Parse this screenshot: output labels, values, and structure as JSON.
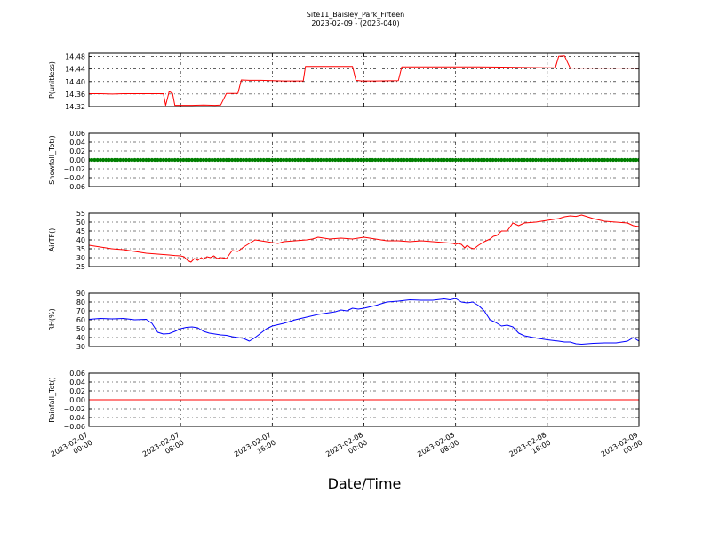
{
  "figure": {
    "title_line1": "Site11_Baisley_Park_Fifteen",
    "title_line2": "2023-02-09 - (2023-040)",
    "xlabel": "Date/Time",
    "x_ticks": [
      {
        "t": 0,
        "line1": "2023-02-07",
        "line2": "00:00"
      },
      {
        "t": 8,
        "line1": "2023-02-07",
        "line2": "08:00"
      },
      {
        "t": 16,
        "line1": "2023-02-07",
        "line2": "16:00"
      },
      {
        "t": 24,
        "line1": "2023-02-08",
        "line2": "00:00"
      },
      {
        "t": 32,
        "line1": "2023-02-08",
        "line2": "08:00"
      },
      {
        "t": 40,
        "line1": "2023-02-08",
        "line2": "16:00"
      },
      {
        "t": 48,
        "line1": "2023-02-09",
        "line2": "00:00"
      }
    ]
  },
  "chart_data": [
    {
      "type": "line",
      "ylabel": "P(unitless)",
      "ylim": [
        14.32,
        14.49
      ],
      "yticks": [
        "14.32",
        "14.36",
        "14.40",
        "14.44",
        "14.48"
      ],
      "grid": true,
      "color": "#ff0000",
      "series": [
        {
          "x": [
            0,
            1,
            2,
            3,
            4,
            5,
            6,
            6.5,
            6.7,
            7,
            7.3,
            7.5,
            8,
            9,
            10,
            11,
            11.5,
            12,
            13,
            13.3,
            14,
            15,
            16,
            17,
            18,
            18.7,
            18.9,
            20,
            22,
            23,
            23.3,
            23.8,
            25,
            27,
            27.3,
            28,
            30,
            32,
            34,
            36,
            38,
            40,
            40.7,
            41,
            41.5,
            42,
            43,
            44,
            45,
            46,
            47,
            48
          ],
          "y": [
            14.361,
            14.361,
            14.36,
            14.361,
            14.361,
            14.361,
            14.361,
            14.361,
            14.324,
            14.368,
            14.362,
            14.324,
            14.324,
            14.324,
            14.325,
            14.324,
            14.325,
            14.362,
            14.362,
            14.405,
            14.404,
            14.404,
            14.403,
            14.402,
            14.402,
            14.402,
            14.448,
            14.448,
            14.448,
            14.448,
            14.404,
            14.402,
            14.402,
            14.403,
            14.447,
            14.447,
            14.447,
            14.447,
            14.447,
            14.446,
            14.445,
            14.444,
            14.444,
            14.481,
            14.482,
            14.443,
            14.443,
            14.443,
            14.443,
            14.443,
            14.443,
            14.443
          ]
        }
      ]
    },
    {
      "type": "scatter",
      "ylabel": "Snowfall_Tot()",
      "ylim": [
        -0.06,
        0.06
      ],
      "yticks": [
        "−0.06",
        "−0.04",
        "−0.02",
        "0.00",
        "0.02",
        "0.04",
        "0.06"
      ],
      "grid": true,
      "color": "#007f00",
      "series": [
        {
          "x_range": [
            0,
            48
          ],
          "y": 0.0
        }
      ]
    },
    {
      "type": "line",
      "ylabel": "AirTF()",
      "ylim": [
        25,
        55
      ],
      "yticks": [
        "25",
        "30",
        "35",
        "40",
        "45",
        "50",
        "55"
      ],
      "grid": true,
      "color": "#ff0000",
      "series": [
        {
          "x": [
            0,
            1,
            2,
            3,
            4,
            5,
            6,
            7,
            7.5,
            8,
            8.3,
            8.6,
            8.9,
            9.2,
            9.5,
            9.8,
            10,
            10.3,
            10.6,
            10.9,
            11.2,
            11.5,
            12,
            12.5,
            13,
            13.5,
            14,
            14.5,
            15,
            15.5,
            16,
            16.5,
            17,
            18,
            19,
            19.5,
            20,
            21,
            22,
            23,
            24,
            25,
            26,
            27,
            28,
            29,
            30,
            31,
            31.8,
            32,
            32.2,
            32.5,
            32.8,
            33,
            33.3,
            33.6,
            34,
            34.5,
            35,
            35.3,
            35.6,
            36,
            36.5,
            37,
            37.5,
            38,
            39,
            40,
            41,
            41.5,
            42,
            42.5,
            43,
            44,
            45,
            46,
            47,
            47.5,
            48
          ],
          "y": [
            37,
            36,
            35,
            34.5,
            33.5,
            32.5,
            32,
            31.5,
            31.2,
            31,
            30.5,
            28.5,
            27.5,
            29.5,
            28.5,
            30,
            29,
            30.5,
            30,
            31,
            29.5,
            30,
            29.5,
            34,
            33.5,
            36,
            38,
            40,
            39.5,
            39,
            38.5,
            38,
            39,
            39.5,
            40,
            40.5,
            41.5,
            40.5,
            41,
            40.5,
            41.5,
            40.5,
            39.5,
            39.5,
            39,
            39.5,
            39,
            38.5,
            38,
            37.5,
            38,
            37.5,
            35.5,
            37,
            35.5,
            35,
            37,
            39,
            40.5,
            42,
            42.5,
            45,
            45,
            49.5,
            48,
            49.5,
            50,
            51,
            52,
            53,
            53.5,
            53.2,
            54,
            52,
            50.5,
            50,
            49.5,
            48,
            47.5
          ]
        }
      ]
    },
    {
      "type": "line",
      "ylabel": "RH(%)",
      "ylim": [
        30,
        90
      ],
      "yticks": [
        "30",
        "40",
        "50",
        "60",
        "70",
        "80",
        "90"
      ],
      "grid": true,
      "color": "#0000ff",
      "series": [
        {
          "x": [
            0,
            1,
            2,
            3,
            4,
            5,
            5.5,
            6,
            6.5,
            7,
            7.5,
            8,
            8.5,
            9,
            9.5,
            10,
            10.5,
            11,
            11.5,
            12,
            12.5,
            13,
            13.5,
            14,
            14.5,
            15,
            15.5,
            16,
            17,
            18,
            19,
            20,
            21,
            21.5,
            22,
            22.5,
            23,
            23.5,
            24,
            25,
            26,
            27,
            28,
            29,
            30,
            31,
            31.5,
            32,
            32.5,
            33,
            33.5,
            34,
            34.5,
            35,
            35.5,
            36,
            36.5,
            37,
            37.5,
            38,
            39,
            40,
            41,
            41.5,
            42,
            42.5,
            43,
            44,
            45,
            46,
            47,
            47.5,
            48
          ],
          "y": [
            60.5,
            61.5,
            61,
            61.5,
            60,
            60.5,
            56,
            46,
            44,
            44.5,
            47,
            50,
            51.5,
            52,
            51,
            47,
            45,
            44,
            43,
            42.5,
            41,
            40,
            39,
            36,
            40,
            45,
            50,
            53,
            56,
            60,
            63,
            66,
            68,
            69,
            71,
            70,
            73,
            72,
            73,
            76,
            80,
            81,
            82.5,
            82,
            82,
            83.5,
            82.5,
            84,
            80,
            79,
            80,
            76,
            70,
            60,
            57,
            53,
            54,
            52,
            45,
            42,
            39.5,
            37.5,
            36,
            35,
            35,
            33,
            32.5,
            33.5,
            34,
            34,
            36,
            40,
            36
          ]
        }
      ]
    },
    {
      "type": "line",
      "ylabel": "Rainfall_Tot()",
      "ylim": [
        -0.06,
        0.06
      ],
      "yticks": [
        "−0.06",
        "−0.04",
        "−0.02",
        "0.00",
        "0.02",
        "0.04",
        "0.06"
      ],
      "grid": true,
      "color": "#ff0000",
      "series": [
        {
          "x": [
            0,
            48
          ],
          "y": [
            0.0,
            0.0
          ]
        }
      ]
    }
  ]
}
